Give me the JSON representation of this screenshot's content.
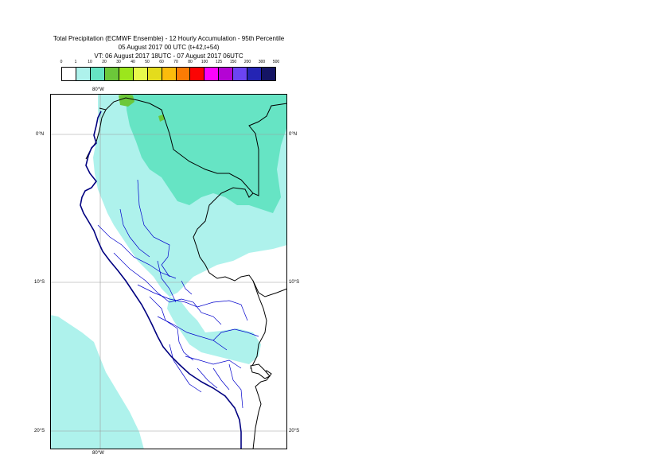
{
  "titles": {
    "line1": "Total Precipitation (ECMWF Ensemble) - 12 Hourly Accumulation - 95th Percentile",
    "line2": "05 August 2017 00 UTC (t+42,t+54)",
    "line3": "VT: 06 August 2017 18UTC - 07 August 2017 06UTC"
  },
  "legend": {
    "ticks": [
      "0",
      "1",
      "10",
      "20",
      "30",
      "40",
      "50",
      "60",
      "70",
      "80",
      "100",
      "125",
      "150",
      "200",
      "300",
      "500"
    ],
    "colors": [
      "#ffffff",
      "#aef2ec",
      "#66e4c4",
      "#6cc83a",
      "#9ce61c",
      "#e8f84c",
      "#e4dc1c",
      "#fcbc0c",
      "#fc7c04",
      "#fc0404",
      "#fc04fc",
      "#b404d4",
      "#6c44f4",
      "#2424b4",
      "#141464"
    ]
  },
  "map": {
    "labels": {
      "top_lon": "80°W",
      "bottom_lon": "80°W",
      "lat0_left": "0°N",
      "lat0_right": "0°N",
      "lat10_left": "10°S",
      "lat10_right": "10°S",
      "lat20_left": "20°S",
      "lat20_right": "20°S"
    },
    "colors": {
      "light_cyan": "#aef2ec",
      "teal": "#66e4c4",
      "green": "#6cc83a",
      "coast": "#000080",
      "border": "#000000",
      "admin": "#0000cc",
      "grid": "#9a9a9a"
    }
  }
}
